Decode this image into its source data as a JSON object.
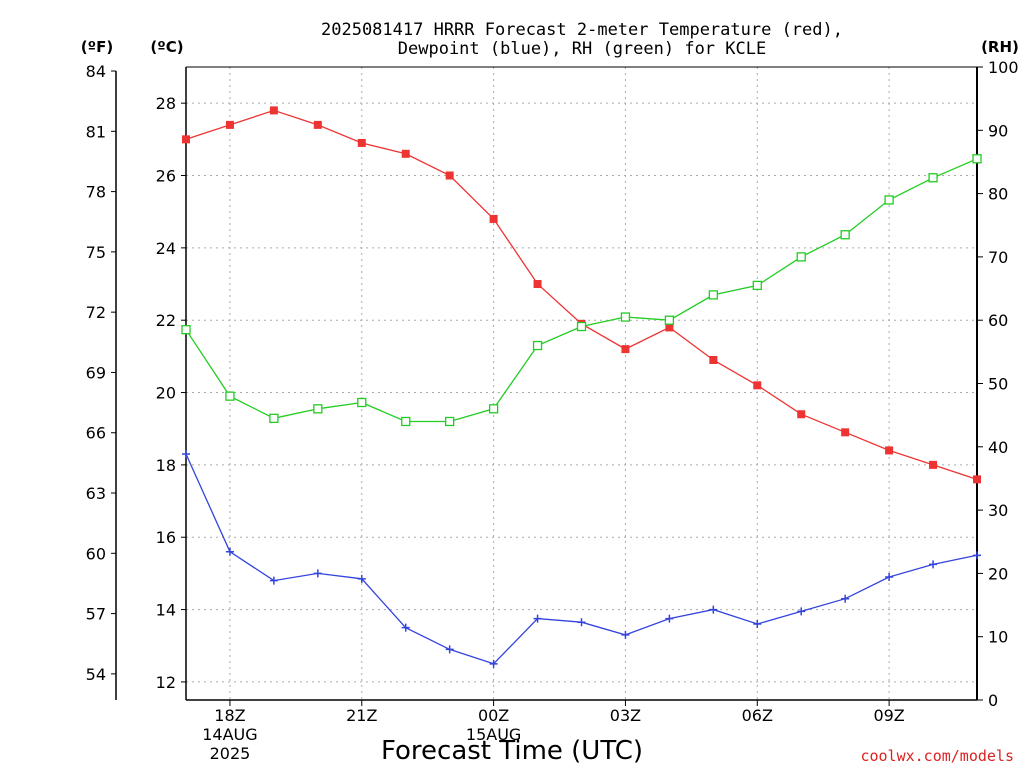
{
  "chart_data": {
    "type": "line",
    "title_lines": [
      "2025081417 HRRR Forecast 2-meter Temperature (red),",
      "Dewpoint (blue), RH (green) for KCLE"
    ],
    "xlabel": "Forecast Time (UTC)",
    "credit": "coolwx.com/models",
    "units": {
      "fahrenheit": "(ºF)",
      "celsius": "(ºC)",
      "rh": "(RH)"
    },
    "x_tick_labels": [
      {
        "hour": 1,
        "lines": [
          "18Z",
          "14AUG",
          "2025"
        ]
      },
      {
        "hour": 4,
        "lines": [
          "21Z"
        ]
      },
      {
        "hour": 7,
        "lines": [
          "00Z",
          "15AUG"
        ]
      },
      {
        "hour": 10,
        "lines": [
          "03Z"
        ]
      },
      {
        "hour": 13,
        "lines": [
          "06Z"
        ]
      },
      {
        "hour": 16,
        "lines": [
          "09Z"
        ]
      }
    ],
    "xlim": [
      0,
      18
    ],
    "celsius_axis": {
      "ylim": [
        11.5,
        29
      ],
      "ticks": [
        12,
        14,
        16,
        18,
        20,
        22,
        24,
        26,
        28
      ]
    },
    "fahrenheit_axis": {
      "ticks": [
        54,
        57,
        60,
        63,
        66,
        69,
        72,
        75,
        78,
        81,
        84
      ]
    },
    "rh_axis": {
      "ylim": [
        0,
        100
      ],
      "ticks": [
        0,
        10,
        20,
        30,
        40,
        50,
        60,
        70,
        80,
        90,
        100
      ]
    },
    "grid": true,
    "colors": {
      "temperature": "#ee3333",
      "dewpoint": "#3344dd",
      "rh": "#22cc22",
      "grid": "#aaaaaa",
      "credit": "#dd2222"
    },
    "series": [
      {
        "name": "Temperature",
        "axis": "celsius",
        "marker": "filled-square",
        "x": [
          0,
          1,
          2,
          3,
          4,
          5,
          6,
          7,
          8,
          9,
          10,
          11,
          12,
          13,
          14,
          15,
          16,
          17,
          18
        ],
        "values": [
          27.0,
          27.4,
          27.8,
          27.4,
          26.9,
          26.6,
          26.0,
          24.8,
          23.0,
          21.9,
          21.2,
          21.8,
          20.9,
          20.2,
          19.4,
          18.9,
          18.4,
          18.0,
          17.6
        ]
      },
      {
        "name": "Dewpoint",
        "axis": "celsius",
        "marker": "plus",
        "x": [
          0,
          1,
          2,
          3,
          4,
          5,
          6,
          7,
          8,
          9,
          10,
          11,
          12,
          13,
          14,
          15,
          16,
          17,
          18
        ],
        "values": [
          18.3,
          15.6,
          14.8,
          15.0,
          14.85,
          13.5,
          12.9,
          12.5,
          13.75,
          13.65,
          13.3,
          13.75,
          14.0,
          13.6,
          13.95,
          14.3,
          14.9,
          15.25,
          15.5
        ]
      },
      {
        "name": "RH",
        "axis": "rh",
        "marker": "open-square",
        "x": [
          0,
          1,
          2,
          3,
          4,
          5,
          6,
          7,
          8,
          9,
          10,
          11,
          12,
          13,
          14,
          15,
          16,
          17,
          18
        ],
        "values": [
          58.5,
          48.0,
          44.5,
          46.0,
          47.0,
          44.0,
          44.0,
          46.0,
          56.0,
          59.0,
          60.5,
          60.0,
          64.0,
          65.5,
          70.0,
          73.5,
          79.0,
          82.5,
          85.5
        ]
      }
    ]
  }
}
